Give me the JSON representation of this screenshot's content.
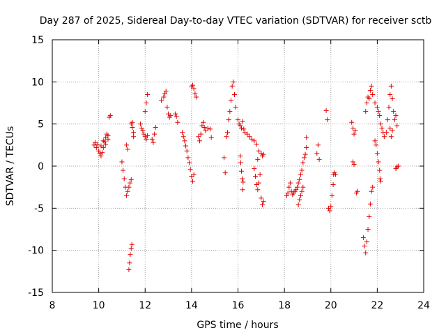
{
  "chart_data": {
    "type": "scatter",
    "title": "Day 287 of 2025, Sidereal Day-to-day VTEC variation (SDTVAR) for receiver sctb",
    "xlabel": "GPS time / hours",
    "ylabel": "SDTVAR / TECUs",
    "xlim": [
      8,
      24
    ],
    "ylim": [
      -15,
      15
    ],
    "xticks": [
      8,
      10,
      12,
      14,
      16,
      18,
      20,
      22,
      24
    ],
    "yticks": [
      -15,
      -10,
      -5,
      0,
      5,
      10,
      15
    ],
    "xtick_labels": [
      "8",
      "10",
      "12",
      "14",
      "16",
      "18",
      "20",
      "22",
      "24"
    ],
    "ytick_labels": [
      "-15",
      "-10",
      "-5",
      "0",
      "5",
      "10",
      "15"
    ],
    "grid": true,
    "marker": "+",
    "marker_color": "#e00000",
    "series": [
      {
        "name": "SDTVAR",
        "points": [
          [
            9.8,
            2.5
          ],
          [
            9.85,
            2.8
          ],
          [
            9.9,
            2.2
          ],
          [
            9.95,
            2.6
          ],
          [
            10.0,
            1.8
          ],
          [
            10.05,
            1.5
          ],
          [
            10.1,
            1.2
          ],
          [
            10.15,
            1.6
          ],
          [
            10.2,
            2.2
          ],
          [
            10.25,
            2.9
          ],
          [
            10.3,
            3.4
          ],
          [
            10.35,
            3.8
          ],
          [
            10.4,
            3.2
          ],
          [
            10.45,
            5.8
          ],
          [
            10.5,
            6.0
          ],
          [
            10.1,
            2.4
          ],
          [
            10.2,
            3.0
          ],
          [
            10.3,
            2.6
          ],
          [
            10.4,
            3.6
          ],
          [
            11.0,
            0.5
          ],
          [
            11.05,
            -0.5
          ],
          [
            11.1,
            -1.5
          ],
          [
            11.15,
            -2.5
          ],
          [
            11.2,
            -3.5
          ],
          [
            11.25,
            -3.0
          ],
          [
            11.3,
            -2.5
          ],
          [
            11.35,
            -2.0
          ],
          [
            11.4,
            -1.6
          ],
          [
            11.4,
            5.0
          ],
          [
            11.45,
            4.6
          ],
          [
            11.5,
            4.0
          ],
          [
            11.5,
            3.5
          ],
          [
            11.45,
            5.2
          ],
          [
            11.2,
            2.5
          ],
          [
            11.25,
            2.0
          ],
          [
            11.3,
            -12.3
          ],
          [
            11.33,
            -11.5
          ],
          [
            11.36,
            -10.5
          ],
          [
            11.4,
            -9.8
          ],
          [
            11.43,
            -9.3
          ],
          [
            11.8,
            5.0
          ],
          [
            11.85,
            4.5
          ],
          [
            11.9,
            4.2
          ],
          [
            11.95,
            3.8
          ],
          [
            12.0,
            3.5
          ],
          [
            12.05,
            3.2
          ],
          [
            12.1,
            3.6
          ],
          [
            12.0,
            6.5
          ],
          [
            12.05,
            7.5
          ],
          [
            12.1,
            8.5
          ],
          [
            12.3,
            3.2
          ],
          [
            12.35,
            2.8
          ],
          [
            12.4,
            3.8
          ],
          [
            12.45,
            4.6
          ],
          [
            12.7,
            7.8
          ],
          [
            12.8,
            8.2
          ],
          [
            12.85,
            8.6
          ],
          [
            12.9,
            8.9
          ],
          [
            12.95,
            7.0
          ],
          [
            13.0,
            6.2
          ],
          [
            13.05,
            5.8
          ],
          [
            13.1,
            6.0
          ],
          [
            13.3,
            6.2
          ],
          [
            13.35,
            5.9
          ],
          [
            13.4,
            5.2
          ],
          [
            13.6,
            4.0
          ],
          [
            13.65,
            3.5
          ],
          [
            13.7,
            3.0
          ],
          [
            13.75,
            2.4
          ],
          [
            13.8,
            1.8
          ],
          [
            13.85,
            1.0
          ],
          [
            13.9,
            0.4
          ],
          [
            13.95,
            -0.4
          ],
          [
            14.0,
            -1.2
          ],
          [
            14.05,
            -1.8
          ],
          [
            14.1,
            -1.0
          ],
          [
            14.0,
            9.4
          ],
          [
            14.05,
            9.6
          ],
          [
            14.1,
            9.2
          ],
          [
            14.15,
            8.6
          ],
          [
            14.2,
            8.2
          ],
          [
            14.3,
            3.5
          ],
          [
            14.35,
            3.0
          ],
          [
            14.4,
            3.8
          ],
          [
            14.45,
            4.8
          ],
          [
            14.5,
            5.2
          ],
          [
            14.55,
            4.6
          ],
          [
            14.6,
            4.2
          ],
          [
            14.7,
            4.5
          ],
          [
            14.8,
            4.4
          ],
          [
            14.85,
            3.4
          ],
          [
            15.4,
            1.0
          ],
          [
            15.45,
            -0.8
          ],
          [
            15.5,
            3.5
          ],
          [
            15.55,
            4.0
          ],
          [
            15.6,
            5.5
          ],
          [
            15.65,
            6.5
          ],
          [
            15.7,
            7.8
          ],
          [
            15.75,
            9.5
          ],
          [
            15.8,
            10.0
          ],
          [
            15.85,
            8.5
          ],
          [
            15.9,
            7.0
          ],
          [
            16.0,
            5.5
          ],
          [
            16.05,
            5.0
          ],
          [
            16.1,
            4.8
          ],
          [
            16.15,
            4.5
          ],
          [
            16.2,
            5.3
          ],
          [
            16.25,
            4.4
          ],
          [
            16.3,
            4.0
          ],
          [
            16.4,
            3.8
          ],
          [
            16.5,
            3.5
          ],
          [
            16.6,
            3.2
          ],
          [
            16.7,
            3.0
          ],
          [
            16.8,
            2.6
          ],
          [
            16.1,
            1.2
          ],
          [
            16.12,
            0.4
          ],
          [
            16.15,
            -0.6
          ],
          [
            16.18,
            -1.5
          ],
          [
            16.2,
            -2.8
          ],
          [
            16.22,
            -1.9
          ],
          [
            16.7,
            -0.3
          ],
          [
            16.75,
            -1.2
          ],
          [
            16.8,
            -2.2
          ],
          [
            16.85,
            -2.8
          ],
          [
            16.9,
            -2.0
          ],
          [
            16.95,
            -1.0
          ],
          [
            16.85,
            0.8
          ],
          [
            16.9,
            1.8
          ],
          [
            17.0,
            1.5
          ],
          [
            17.05,
            1.2
          ],
          [
            17.1,
            1.4
          ],
          [
            17.0,
            -3.8
          ],
          [
            17.05,
            -4.6
          ],
          [
            17.1,
            -4.2
          ],
          [
            18.1,
            -3.5
          ],
          [
            18.15,
            -3.2
          ],
          [
            18.2,
            -2.5
          ],
          [
            18.25,
            -2.0
          ],
          [
            18.3,
            -3.0
          ],
          [
            18.35,
            -3.4
          ],
          [
            18.4,
            -3.2
          ],
          [
            18.45,
            -3.0
          ],
          [
            18.5,
            -2.8
          ],
          [
            18.55,
            -2.5
          ],
          [
            18.6,
            -2.0
          ],
          [
            18.65,
            -1.6
          ],
          [
            18.7,
            -1.0
          ],
          [
            18.75,
            -0.5
          ],
          [
            18.8,
            0.4
          ],
          [
            18.85,
            1.0
          ],
          [
            18.9,
            1.4
          ],
          [
            18.95,
            2.2
          ],
          [
            18.95,
            3.4
          ],
          [
            18.6,
            -4.6
          ],
          [
            18.65,
            -4.0
          ],
          [
            18.7,
            -3.5
          ],
          [
            18.75,
            -3.0
          ],
          [
            18.8,
            -2.5
          ],
          [
            19.4,
            1.5
          ],
          [
            19.45,
            2.5
          ],
          [
            19.5,
            0.8
          ],
          [
            19.8,
            6.6
          ],
          [
            19.85,
            5.5
          ],
          [
            19.9,
            -5.0
          ],
          [
            19.95,
            -5.3
          ],
          [
            20.0,
            -4.8
          ],
          [
            20.05,
            -3.5
          ],
          [
            20.1,
            -2.2
          ],
          [
            20.12,
            -1.0
          ],
          [
            20.15,
            -0.8
          ],
          [
            20.2,
            -1.0
          ],
          [
            20.9,
            5.2
          ],
          [
            20.95,
            4.5
          ],
          [
            21.0,
            3.8
          ],
          [
            21.05,
            4.2
          ],
          [
            20.95,
            0.5
          ],
          [
            21.0,
            0.2
          ],
          [
            21.1,
            -3.2
          ],
          [
            21.15,
            -3.0
          ],
          [
            21.5,
            6.5
          ],
          [
            21.55,
            7.5
          ],
          [
            21.6,
            8.2
          ],
          [
            21.65,
            8.0
          ],
          [
            21.7,
            9.0
          ],
          [
            21.75,
            9.5
          ],
          [
            21.8,
            8.5
          ],
          [
            21.9,
            7.5
          ],
          [
            22.0,
            7.0
          ],
          [
            22.05,
            6.5
          ],
          [
            22.1,
            6.0
          ],
          [
            22.15,
            5.0
          ],
          [
            22.2,
            4.5
          ],
          [
            22.25,
            4.0
          ],
          [
            22.3,
            3.5
          ],
          [
            21.4,
            -8.5
          ],
          [
            21.45,
            -9.5
          ],
          [
            21.5,
            -10.3
          ],
          [
            21.55,
            -9.0
          ],
          [
            21.6,
            -7.5
          ],
          [
            21.65,
            -6.0
          ],
          [
            21.7,
            -4.5
          ],
          [
            21.75,
            -3.0
          ],
          [
            21.8,
            -2.5
          ],
          [
            21.9,
            3.0
          ],
          [
            21.95,
            2.5
          ],
          [
            22.0,
            1.5
          ],
          [
            22.05,
            0.5
          ],
          [
            22.1,
            -0.5
          ],
          [
            22.12,
            -1.5
          ],
          [
            22.15,
            -1.8
          ],
          [
            22.4,
            4.0
          ],
          [
            22.45,
            5.5
          ],
          [
            22.5,
            7.0
          ],
          [
            22.55,
            8.5
          ],
          [
            22.6,
            9.5
          ],
          [
            22.65,
            8.0
          ],
          [
            22.7,
            6.5
          ],
          [
            22.75,
            5.5
          ],
          [
            22.8,
            6.0
          ],
          [
            22.85,
            4.8
          ],
          [
            22.55,
            4.5
          ],
          [
            22.6,
            3.5
          ],
          [
            22.65,
            4.2
          ],
          [
            22.8,
            -0.3
          ],
          [
            22.85,
            -0.1
          ],
          [
            22.9,
            0.0
          ]
        ]
      }
    ]
  }
}
